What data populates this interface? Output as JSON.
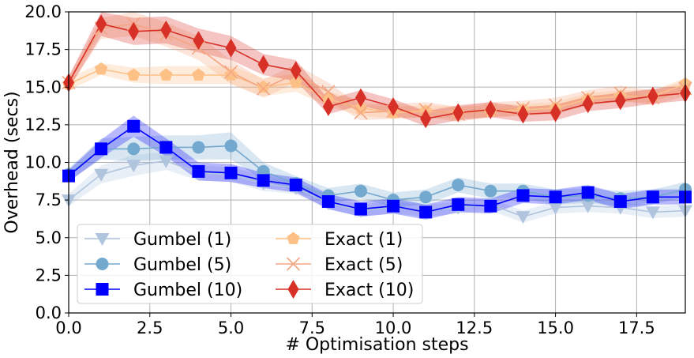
{
  "chart_data": {
    "type": "line",
    "xlabel": "# Optimisation steps",
    "ylabel": "Overhead (secs)",
    "xlim": [
      0,
      19
    ],
    "ylim": [
      0,
      20
    ],
    "xticks": [
      "0.0",
      "2.5",
      "5.0",
      "7.5",
      "10.0",
      "12.5",
      "15.0",
      "17.5"
    ],
    "yticks": [
      "0.0",
      "2.5",
      "5.0",
      "7.5",
      "10.0",
      "12.5",
      "15.0",
      "17.5",
      "20.0"
    ],
    "grid": true,
    "legend": "lower-left",
    "x": [
      0,
      1,
      2,
      3,
      4,
      5,
      6,
      7,
      8,
      9,
      10,
      11,
      12,
      13,
      14,
      15,
      16,
      17,
      18,
      19
    ],
    "series": [
      {
        "name": "Gumbel (1)",
        "color": "#b0c4de",
        "marker": "triangle-down",
        "values": [
          7.5,
          9.2,
          9.8,
          10.1,
          9.3,
          9.2,
          8.6,
          8.3,
          7.3,
          6.8,
          7.0,
          6.8,
          7.0,
          7.2,
          6.4,
          7.0,
          7.1,
          7.0,
          6.7,
          6.8
        ],
        "band": [
          0.4,
          0.6,
          0.7,
          0.6,
          0.5,
          0.5,
          0.5,
          0.4,
          0.4,
          0.4,
          0.4,
          0.4,
          0.4,
          0.4,
          0.4,
          0.4,
          0.4,
          0.4,
          0.4,
          0.4
        ]
      },
      {
        "name": "Gumbel (5)",
        "color": "#74a9cf",
        "marker": "circle",
        "values": [
          9.2,
          10.9,
          10.9,
          11.0,
          11.0,
          11.1,
          9.4,
          8.6,
          7.8,
          8.1,
          7.5,
          7.7,
          8.5,
          8.1,
          8.1,
          7.7,
          7.8,
          7.6,
          7.7,
          8.2
        ],
        "band": [
          0.4,
          0.7,
          0.8,
          0.8,
          0.8,
          0.9,
          0.6,
          0.5,
          0.5,
          0.5,
          0.5,
          0.5,
          0.5,
          0.5,
          0.5,
          0.5,
          0.5,
          0.5,
          0.5,
          0.5
        ]
      },
      {
        "name": "Gumbel (10)",
        "color": "#0000ff",
        "marker": "square",
        "values": [
          9.1,
          10.9,
          12.4,
          11.0,
          9.4,
          9.3,
          8.8,
          8.5,
          7.4,
          6.9,
          7.1,
          6.7,
          7.2,
          7.1,
          7.8,
          7.7,
          8.0,
          7.4,
          7.7,
          7.7
        ],
        "band": [
          0.4,
          0.6,
          0.7,
          0.6,
          0.6,
          0.6,
          0.5,
          0.5,
          0.5,
          0.5,
          0.5,
          0.5,
          0.5,
          0.5,
          0.5,
          0.5,
          0.5,
          0.5,
          0.5,
          0.5
        ]
      },
      {
        "name": "Exact (1)",
        "color": "#fdc086",
        "marker": "pentagon",
        "values": [
          15.2,
          16.2,
          15.8,
          15.8,
          15.8,
          15.8,
          15.0,
          15.3,
          14.2,
          13.6,
          13.3,
          13.4,
          13.3,
          13.4,
          13.5,
          13.6,
          14.2,
          14.4,
          14.4,
          15.2
        ],
        "band": [
          0.4,
          0.4,
          0.5,
          0.6,
          0.6,
          0.6,
          0.6,
          0.6,
          0.5,
          0.5,
          0.4,
          0.4,
          0.4,
          0.4,
          0.4,
          0.4,
          0.4,
          0.4,
          0.4,
          0.4
        ]
      },
      {
        "name": "Exact (5)",
        "color": "#f4a582",
        "marker": "x",
        "values": [
          15.3,
          18.9,
          19.2,
          18.5,
          17.6,
          16.0,
          14.9,
          15.9,
          14.7,
          13.3,
          13.4,
          13.5,
          13.2,
          13.5,
          13.6,
          13.8,
          14.3,
          14.6,
          14.3,
          14.9
        ],
        "band": [
          0.4,
          0.7,
          0.8,
          0.8,
          0.8,
          0.8,
          0.6,
          0.6,
          0.6,
          0.5,
          0.5,
          0.5,
          0.5,
          0.5,
          0.5,
          0.5,
          0.5,
          0.5,
          0.5,
          0.5
        ]
      },
      {
        "name": "Exact (10)",
        "color": "#d73027",
        "marker": "diamond",
        "values": [
          15.3,
          19.2,
          18.7,
          18.8,
          18.1,
          17.6,
          16.5,
          16.1,
          13.7,
          14.3,
          13.7,
          12.9,
          13.3,
          13.5,
          13.2,
          13.3,
          13.9,
          14.1,
          14.4,
          14.6
        ],
        "band": [
          0.4,
          0.8,
          0.9,
          0.9,
          0.8,
          0.8,
          0.7,
          0.7,
          0.5,
          0.5,
          0.5,
          0.5,
          0.5,
          0.5,
          0.5,
          0.5,
          0.5,
          0.5,
          0.5,
          0.5
        ]
      }
    ]
  }
}
